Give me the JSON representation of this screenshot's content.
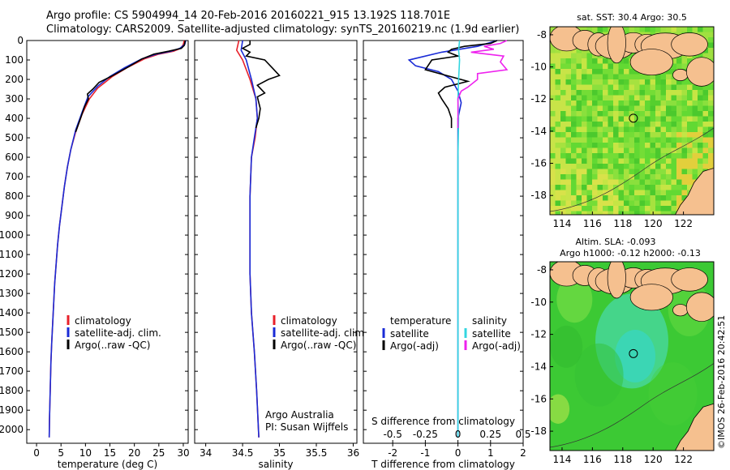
{
  "header": {
    "line1": "Argo profile: CS 5904994_14 20-Feb-2016 20160221_915 13.192S 118.701E",
    "line2": "Climatology: CARS2009. Satellite-adjusted climatology: synTS_20160219.nc (1.9d earlier)"
  },
  "watermark": "©IMOS 26-Feb-2016 20:42:51",
  "colors": {
    "climatology": "#e8202a",
    "satellite": "#1a2bd6",
    "argo": "#000000",
    "sal_satellite": "#33d6e0",
    "sal_argo": "#ee22ee",
    "land": "#f5c08f",
    "ocean_green": "#5ad632"
  },
  "chart_data": [
    {
      "type": "line",
      "id": "temperature",
      "xlabel": "temperature (deg C)",
      "xticks": [
        "0",
        "5",
        "10",
        "15",
        "20",
        "25",
        "30"
      ],
      "ylabel": "",
      "yticks": [
        "0",
        "100",
        "200",
        "300",
        "400",
        "500",
        "600",
        "700",
        "800",
        "900",
        "1000",
        "1100",
        "1200",
        "1300",
        "1400",
        "1500",
        "1600",
        "1700",
        "1800",
        "1900",
        "2000"
      ],
      "xlim": [
        -2,
        31
      ],
      "ylim": [
        2070,
        0
      ],
      "legend": {
        "position": "bottom-center",
        "items": [
          "climatology",
          "satellite-adj. clim.",
          "Argo(..raw -QC)"
        ]
      },
      "series": [
        {
          "name": "climatology",
          "color": "#e8202a",
          "points": [
            [
              30.2,
              0
            ],
            [
              30.0,
              20
            ],
            [
              29.5,
              40
            ],
            [
              28,
              55
            ],
            [
              25,
              70
            ],
            [
              22,
              95
            ],
            [
              18.5,
              140
            ],
            [
              15.5,
              185
            ],
            [
              12.5,
              245
            ],
            [
              10.8,
              300
            ],
            [
              9.3,
              380
            ],
            [
              8.0,
              470
            ],
            [
              7.0,
              560
            ],
            [
              6.3,
              650
            ],
            [
              5.7,
              750
            ],
            [
              5.2,
              850
            ],
            [
              4.7,
              950
            ],
            [
              4.3,
              1050
            ],
            [
              4.0,
              1150
            ],
            [
              3.7,
              1250
            ],
            [
              3.5,
              1350
            ],
            [
              3.3,
              1450
            ],
            [
              3.1,
              1550
            ],
            [
              2.95,
              1650
            ],
            [
              2.85,
              1750
            ],
            [
              2.75,
              1850
            ],
            [
              2.65,
              1950
            ],
            [
              2.6,
              2040
            ]
          ]
        },
        {
          "name": "satellite-adj. clim.",
          "color": "#1a2bd6",
          "points": [
            [
              30.5,
              0
            ],
            [
              30.3,
              20
            ],
            [
              29.3,
              40
            ],
            [
              27.5,
              55
            ],
            [
              24.5,
              70
            ],
            [
              21.5,
              95
            ],
            [
              18,
              140
            ],
            [
              15,
              185
            ],
            [
              12.5,
              235
            ],
            [
              10.5,
              290
            ],
            [
              9.3,
              370
            ],
            [
              8.0,
              460
            ],
            [
              7.0,
              560
            ],
            [
              6.3,
              650
            ],
            [
              5.7,
              750
            ],
            [
              5.2,
              850
            ],
            [
              4.7,
              950
            ],
            [
              4.3,
              1050
            ],
            [
              4.0,
              1150
            ],
            [
              3.7,
              1250
            ],
            [
              3.5,
              1350
            ],
            [
              3.3,
              1450
            ],
            [
              3.1,
              1550
            ],
            [
              2.95,
              1650
            ],
            [
              2.85,
              1750
            ],
            [
              2.75,
              1850
            ],
            [
              2.65,
              1950
            ],
            [
              2.6,
              2040
            ]
          ]
        },
        {
          "name": "Argo(..raw -QC)",
          "color": "#000000",
          "points": [
            [
              30.4,
              0
            ],
            [
              30.2,
              25
            ],
            [
              29.6,
              40
            ],
            [
              27,
              55
            ],
            [
              24,
              70
            ],
            [
              21.5,
              95
            ],
            [
              18.8,
              135
            ],
            [
              15.2,
              185
            ],
            [
              12.8,
              215
            ],
            [
              11.5,
              250
            ],
            [
              10.4,
              275
            ],
            [
              10.6,
              300
            ],
            [
              9.8,
              340
            ],
            [
              9.0,
              400
            ],
            [
              8.0,
              470
            ]
          ]
        }
      ]
    },
    {
      "type": "line",
      "id": "salinity",
      "xlabel": "salinity",
      "xticks": [
        "34",
        "34.5",
        "35",
        "35.5",
        "36"
      ],
      "xlim": [
        33.85,
        36.05
      ],
      "ylim": [
        2070,
        0
      ],
      "legend": {
        "position": "bottom-center",
        "items": [
          "climatology",
          "satellite-adj. clim.",
          "Argo(..raw -QC)"
        ]
      },
      "annotations": [
        "Argo Australia",
        "PI: Susan Wijffels"
      ],
      "series": [
        {
          "name": "climatology",
          "color": "#e8202a",
          "points": [
            [
              34.45,
              0
            ],
            [
              34.42,
              50
            ],
            [
              34.5,
              100
            ],
            [
              34.6,
              200
            ],
            [
              34.68,
              300
            ],
            [
              34.7,
              400
            ],
            [
              34.67,
              500
            ],
            [
              34.62,
              600
            ],
            [
              34.6,
              800
            ],
            [
              34.6,
              1000
            ],
            [
              34.6,
              1200
            ],
            [
              34.62,
              1400
            ],
            [
              34.66,
              1600
            ],
            [
              34.69,
              1800
            ],
            [
              34.72,
              2040
            ]
          ]
        },
        {
          "name": "satellite-adj. clim.",
          "color": "#1a2bd6",
          "points": [
            [
              34.5,
              0
            ],
            [
              34.48,
              50
            ],
            [
              34.55,
              100
            ],
            [
              34.62,
              200
            ],
            [
              34.68,
              300
            ],
            [
              34.7,
              400
            ],
            [
              34.66,
              500
            ],
            [
              34.62,
              600
            ],
            [
              34.6,
              800
            ],
            [
              34.6,
              1000
            ],
            [
              34.6,
              1200
            ],
            [
              34.62,
              1400
            ],
            [
              34.66,
              1600
            ],
            [
              34.69,
              1800
            ],
            [
              34.72,
              2040
            ]
          ]
        },
        {
          "name": "Argo(..raw -QC)",
          "color": "#000000",
          "points": [
            [
              34.6,
              0
            ],
            [
              34.6,
              20
            ],
            [
              34.5,
              40
            ],
            [
              34.6,
              60
            ],
            [
              34.55,
              80
            ],
            [
              34.8,
              100
            ],
            [
              34.9,
              140
            ],
            [
              35.0,
              180
            ],
            [
              34.85,
              200
            ],
            [
              34.7,
              230
            ],
            [
              34.8,
              270
            ],
            [
              34.7,
              290
            ],
            [
              34.74,
              350
            ],
            [
              34.72,
              400
            ],
            [
              34.68,
              450
            ]
          ]
        }
      ]
    },
    {
      "type": "line",
      "id": "difference",
      "xlabel": "T difference from climatology",
      "xticks": [
        "-2",
        "-1",
        "0",
        "1",
        "2"
      ],
      "x2label": "S difference from climatology",
      "x2ticks": [
        "-0.5",
        "-0.25",
        "0",
        "0.25",
        "0.5"
      ],
      "xlim": [
        -2.9,
        2.0
      ],
      "ylim": [
        2070,
        0
      ],
      "legend": {
        "position": "bottom",
        "temperature": [
          "temperature",
          "satellite",
          "Argo(-adj)"
        ],
        "salinity": [
          "salinity",
          "satellite",
          "Argo(-adj)"
        ]
      },
      "series": [
        {
          "name": "temperature satellite",
          "color": "#1a2bd6",
          "points": [
            [
              1.2,
              0
            ],
            [
              0.6,
              30
            ],
            [
              -0.5,
              60
            ],
            [
              -1.5,
              100
            ],
            [
              -1.3,
              130
            ],
            [
              -0.6,
              160
            ],
            [
              -0.2,
              200
            ],
            [
              0,
              260
            ],
            [
              0.1,
              320
            ],
            [
              0,
              400
            ],
            [
              0,
              600
            ],
            [
              0,
              1000
            ],
            [
              0,
              1500
            ],
            [
              0,
              2040
            ]
          ]
        },
        {
          "name": "temperature Argo(-adj)",
          "color": "#000000",
          "points": [
            [
              1.2,
              0
            ],
            [
              1.0,
              15
            ],
            [
              0.2,
              30
            ],
            [
              -0.2,
              45
            ],
            [
              -0.3,
              60
            ],
            [
              0,
              80
            ],
            [
              -0.8,
              100
            ],
            [
              -1.0,
              150
            ],
            [
              0.3,
              210
            ],
            [
              -0.4,
              240
            ],
            [
              -0.6,
              270
            ],
            [
              -0.5,
              300
            ],
            [
              -0.3,
              350
            ],
            [
              -0.2,
              400
            ],
            [
              -0.2,
              450
            ]
          ]
        },
        {
          "name": "salinity satellite",
          "color": "#33d6e0",
          "points": [
            [
              0.05,
              0
            ],
            [
              0.02,
              50
            ],
            [
              0.05,
              100
            ],
            [
              0.02,
              200
            ],
            [
              0,
              300
            ],
            [
              0.02,
              400
            ],
            [
              0,
              600
            ],
            [
              0,
              1000
            ],
            [
              0,
              1500
            ],
            [
              0,
              2040
            ]
          ]
        },
        {
          "name": "salinity Argo(-adj)",
          "color": "#ee22ee",
          "points": [
            [
              1.5,
              0
            ],
            [
              1.3,
              15
            ],
            [
              0.8,
              30
            ],
            [
              1.1,
              45
            ],
            [
              0.4,
              60
            ],
            [
              1.4,
              80
            ],
            [
              1.3,
              110
            ],
            [
              1.5,
              150
            ],
            [
              0.6,
              170
            ],
            [
              0.6,
              200
            ],
            [
              0.3,
              240
            ],
            [
              0.1,
              260
            ],
            [
              0,
              300
            ],
            [
              0,
              400
            ],
            [
              0,
              450
            ]
          ]
        }
      ]
    },
    {
      "type": "heatmap",
      "id": "sst-map",
      "title": "sat. SST: 30.4 Argo: 30.5",
      "xticks": [
        "114",
        "116",
        "118",
        "120",
        "122"
      ],
      "yticks": [
        "-8",
        "-10",
        "-12",
        "-14",
        "-16",
        "-18"
      ],
      "xlim": [
        113.2,
        124.0
      ],
      "ylim": [
        -19.2,
        -7.5
      ],
      "argo_location": [
        118.7,
        -13.19
      ]
    },
    {
      "type": "heatmap",
      "id": "sla-map",
      "title": "Altim. SLA: -0.093",
      "subtitle": "Argo h1000: -0.12 h2000: -0.13",
      "xticks": [
        "114",
        "116",
        "118",
        "120",
        "122"
      ],
      "yticks": [
        "-8",
        "-10",
        "-12",
        "-14",
        "-16",
        "-18"
      ],
      "xlim": [
        113.2,
        124.0
      ],
      "ylim": [
        -19.2,
        -7.5
      ],
      "argo_location": [
        118.7,
        -13.19
      ]
    }
  ]
}
